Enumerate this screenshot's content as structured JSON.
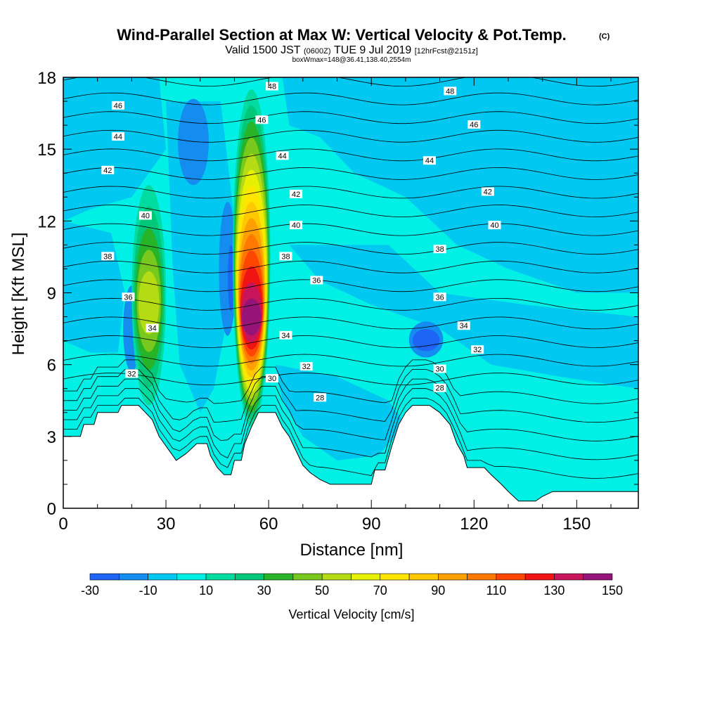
{
  "header": {
    "title": "Wind-Parallel Section at Max W: Vertical Velocity & Pot.Temp.",
    "copyright": "(C)",
    "valid_prefix": "Valid 1500 JST",
    "valid_utc": "(0600Z)",
    "valid_date": "TUE 9 Jul 2019",
    "forecast": "[12hrFcst@2151z]",
    "box_info": "boxWmax=148@36.41,138.40,2554m"
  },
  "chart_data": {
    "type": "heatmap",
    "xlabel": "Distance [nm]",
    "ylabel": "Height [Kft MSL]",
    "xlim": [
      0,
      168
    ],
    "ylim": [
      0,
      18
    ],
    "x_ticks": [
      "0",
      "30",
      "60",
      "90",
      "120",
      "150"
    ],
    "x_tick_values": [
      0,
      30,
      60,
      90,
      120,
      150
    ],
    "y_ticks": [
      "0",
      "3",
      "6",
      "9",
      "12",
      "15",
      "18"
    ],
    "y_tick_values": [
      0,
      3,
      6,
      9,
      12,
      15,
      18
    ],
    "colorbar": {
      "title": "Vertical Velocity [cm/s]",
      "labels": [
        "-30",
        "-10",
        "10",
        "30",
        "50",
        "70",
        "90",
        "110",
        "130",
        "150"
      ],
      "levels": [
        -30,
        -20,
        -10,
        0,
        10,
        20,
        30,
        40,
        50,
        60,
        70,
        80,
        90,
        100,
        110,
        120,
        130,
        140,
        150
      ],
      "colors": [
        "#0a14f0",
        "#1e64f5",
        "#148cf0",
        "#00c8f0",
        "#00f0e6",
        "#00dca0",
        "#00c878",
        "#28b428",
        "#78c81e",
        "#b4dc14",
        "#e6f000",
        "#ffe600",
        "#ffc800",
        "#ffa000",
        "#ff7800",
        "#ff4600",
        "#f01414",
        "#c8145a",
        "#961478",
        "#64148c"
      ]
    },
    "terrain": [
      [
        0,
        3.0
      ],
      [
        5,
        3.0
      ],
      [
        6,
        3.5
      ],
      [
        9,
        3.5
      ],
      [
        10,
        4.0
      ],
      [
        16,
        4.0
      ],
      [
        17,
        4.3
      ],
      [
        22,
        4.3
      ],
      [
        24,
        4.0
      ],
      [
        26,
        3.7
      ],
      [
        28,
        3.0
      ],
      [
        30,
        2.6
      ],
      [
        33,
        2.0
      ],
      [
        36,
        2.3
      ],
      [
        39,
        2.7
      ],
      [
        42,
        2.7
      ],
      [
        43,
        2.2
      ],
      [
        45,
        1.7
      ],
      [
        47,
        1.4
      ],
      [
        49,
        1.4
      ],
      [
        50,
        2.0
      ],
      [
        52,
        2.0
      ],
      [
        53,
        2.7
      ],
      [
        55,
        3.4
      ],
      [
        57,
        4.0
      ],
      [
        62,
        4.0
      ],
      [
        64,
        3.4
      ],
      [
        66,
        3.0
      ],
      [
        68,
        2.4
      ],
      [
        70,
        1.8
      ],
      [
        72,
        1.5
      ],
      [
        75,
        1.2
      ],
      [
        78,
        1.0
      ],
      [
        90,
        1.0
      ],
      [
        91,
        1.6
      ],
      [
        94,
        1.6
      ],
      [
        96,
        2.6
      ],
      [
        98,
        3.5
      ],
      [
        100,
        4.0
      ],
      [
        102,
        4.3
      ],
      [
        107,
        4.3
      ],
      [
        110,
        4.0
      ],
      [
        113,
        3.5
      ],
      [
        115,
        2.7
      ],
      [
        117,
        2.2
      ],
      [
        118,
        1.7
      ],
      [
        123,
        1.7
      ],
      [
        125,
        1.4
      ],
      [
        128,
        1.0
      ],
      [
        130,
        0.7
      ],
      [
        133,
        0.3
      ],
      [
        138,
        0.3
      ],
      [
        140,
        0.5
      ],
      [
        143,
        0.7
      ],
      [
        168,
        0.7
      ]
    ],
    "updrafts": [
      {
        "x": 55,
        "y_bottom": 3.4,
        "y_top": 17.5,
        "peak_y": 7.8,
        "peak": 148
      },
      {
        "x": 25,
        "y_bottom": 4.3,
        "y_top": 13.5,
        "peak_y": 8.5,
        "peak": 55
      },
      {
        "x": 106,
        "y_bottom": 6.3,
        "y_top": 7.8,
        "peak_y": 7.0,
        "peak": -20
      }
    ],
    "theta_labels": [
      {
        "text": "48",
        "x": 61,
        "y": 17.6
      },
      {
        "text": "48",
        "x": 113,
        "y": 17.4
      },
      {
        "text": "46",
        "x": 16,
        "y": 16.8
      },
      {
        "text": "46",
        "x": 58,
        "y": 16.2
      },
      {
        "text": "46",
        "x": 120,
        "y": 16.0
      },
      {
        "text": "44",
        "x": 16,
        "y": 15.5
      },
      {
        "text": "44",
        "x": 64,
        "y": 14.7
      },
      {
        "text": "44",
        "x": 107,
        "y": 14.5
      },
      {
        "text": "42",
        "x": 13,
        "y": 14.1
      },
      {
        "text": "42",
        "x": 68,
        "y": 13.1
      },
      {
        "text": "42",
        "x": 124,
        "y": 13.2
      },
      {
        "text": "40",
        "x": 24,
        "y": 12.2
      },
      {
        "text": "40",
        "x": 68,
        "y": 11.8
      },
      {
        "text": "40",
        "x": 126,
        "y": 11.8
      },
      {
        "text": "38",
        "x": 13,
        "y": 10.5
      },
      {
        "text": "38",
        "x": 65,
        "y": 10.5
      },
      {
        "text": "38",
        "x": 110,
        "y": 10.8
      },
      {
        "text": "36",
        "x": 19,
        "y": 8.8
      },
      {
        "text": "36",
        "x": 74,
        "y": 9.5
      },
      {
        "text": "36",
        "x": 110,
        "y": 8.8
      },
      {
        "text": "34",
        "x": 26,
        "y": 7.5
      },
      {
        "text": "34",
        "x": 65,
        "y": 7.2
      },
      {
        "text": "34",
        "x": 117,
        "y": 7.6
      },
      {
        "text": "32",
        "x": 20,
        "y": 5.6
      },
      {
        "text": "32",
        "x": 71,
        "y": 5.9
      },
      {
        "text": "32",
        "x": 121,
        "y": 6.6
      },
      {
        "text": "30",
        "x": 61,
        "y": 5.4
      },
      {
        "text": "30",
        "x": 110,
        "y": 5.8
      },
      {
        "text": "28",
        "x": 75,
        "y": 4.6
      },
      {
        "text": "28",
        "x": 110,
        "y": 5.0
      }
    ]
  }
}
